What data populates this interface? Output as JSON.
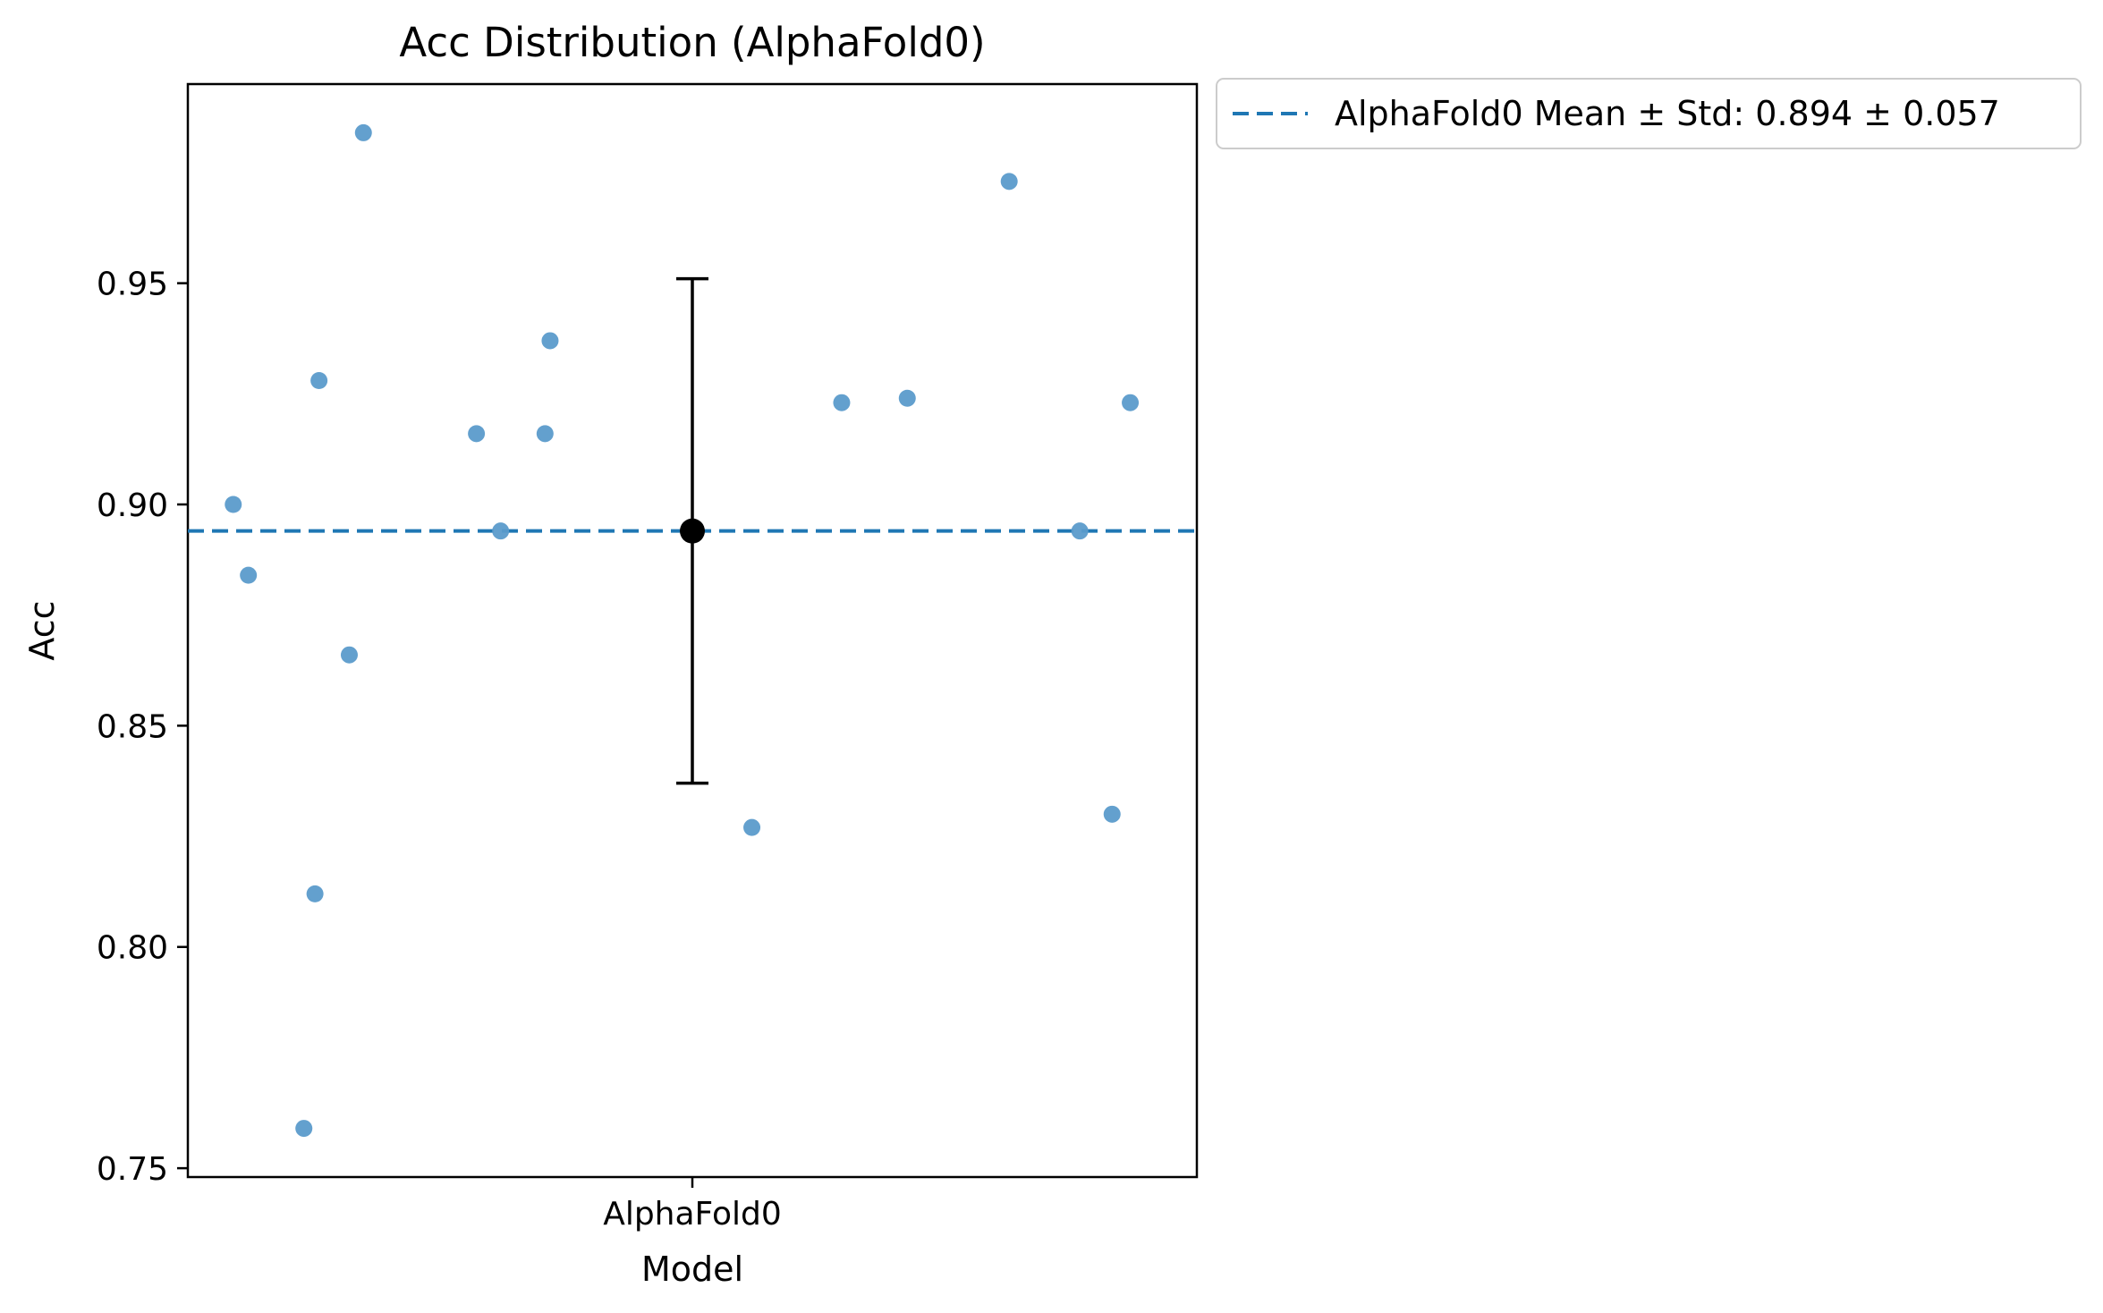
{
  "chart_data": {
    "type": "scatter",
    "title": "Acc Distribution (AlphaFold0)",
    "xlabel": "Model",
    "ylabel": "Acc",
    "categories": [
      "AlphaFold0"
    ],
    "ylim": [
      0.748,
      0.995
    ],
    "xlim": [
      -0.5,
      0.5
    ],
    "yticks": [
      0.75,
      0.8,
      0.85,
      0.9,
      0.95
    ],
    "ytick_labels": [
      "0.75",
      "0.80",
      "0.85",
      "0.90",
      "0.95"
    ],
    "grid": false,
    "legend_position": "outside upper-right",
    "point_color": "#5b9bcb",
    "mean_line_color": "#1f77b4",
    "summary_color": "#000000",
    "series": [
      {
        "name": "AlphaFold0",
        "points": [
          {
            "x": -0.455,
            "y": 0.9
          },
          {
            "x": -0.44,
            "y": 0.884
          },
          {
            "x": -0.385,
            "y": 0.759
          },
          {
            "x": -0.374,
            "y": 0.812
          },
          {
            "x": -0.37,
            "y": 0.928
          },
          {
            "x": -0.34,
            "y": 0.866
          },
          {
            "x": -0.326,
            "y": 0.984
          },
          {
            "x": -0.214,
            "y": 0.916
          },
          {
            "x": -0.19,
            "y": 0.894
          },
          {
            "x": -0.146,
            "y": 0.916
          },
          {
            "x": -0.141,
            "y": 0.937
          },
          {
            "x": 0.059,
            "y": 0.827
          },
          {
            "x": 0.148,
            "y": 0.923
          },
          {
            "x": 0.213,
            "y": 0.924
          },
          {
            "x": 0.314,
            "y": 0.973
          },
          {
            "x": 0.384,
            "y": 0.894
          },
          {
            "x": 0.416,
            "y": 0.83
          },
          {
            "x": 0.434,
            "y": 0.923
          }
        ]
      }
    ],
    "summary": {
      "mean": 0.894,
      "std": 0.057
    },
    "legend_label": "AlphaFold0 Mean ± Std: 0.894 ± 0.057"
  }
}
